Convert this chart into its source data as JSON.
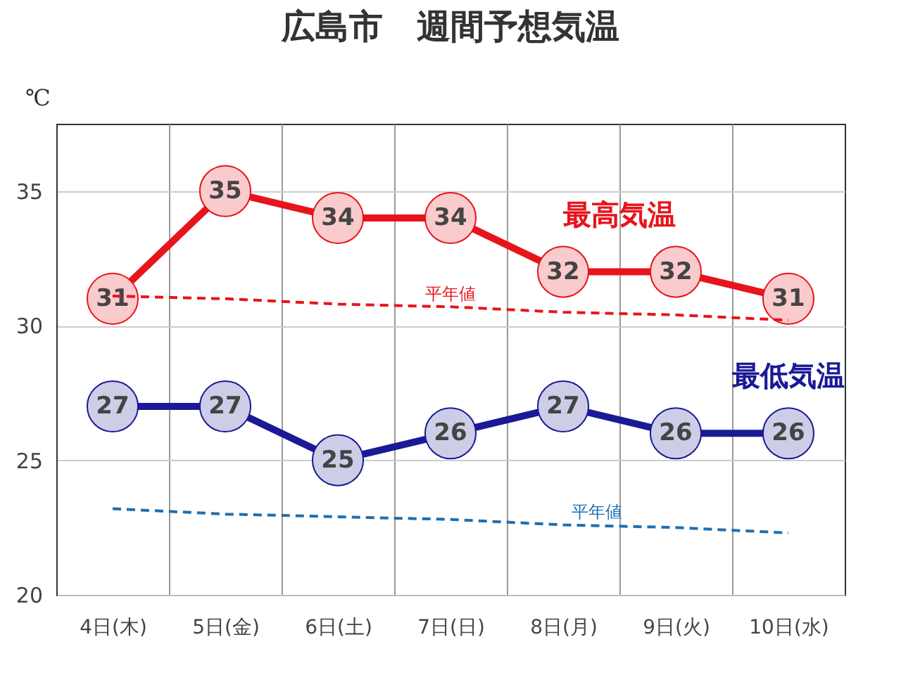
{
  "chart_data": {
    "type": "line",
    "title": "広島市　週間予想気温",
    "ylabel": "℃",
    "categories": [
      "4日(木)",
      "5日(金)",
      "6日(土)",
      "7日(日)",
      "8日(月)",
      "9日(火)",
      "10日(水)"
    ],
    "series": [
      {
        "name": "最高気温",
        "color": "#e8141c",
        "marker": "circle",
        "values": [
          31,
          35,
          34,
          34,
          32,
          32,
          31
        ],
        "value_labels": [
          "31",
          "35",
          "34",
          "34",
          "32",
          "32",
          "31"
        ]
      },
      {
        "name": "最低気温",
        "color": "#1a1a96",
        "marker": "circle",
        "values": [
          27,
          27,
          25,
          26,
          27,
          26,
          26
        ],
        "value_labels": [
          "27",
          "27",
          "25",
          "26",
          "27",
          "26",
          "26"
        ]
      },
      {
        "name": "平年値",
        "color": "#e8141c",
        "marker": "none",
        "line_style": "dashed",
        "values": [
          31.1,
          31.0,
          30.8,
          30.7,
          30.5,
          30.4,
          30.2
        ]
      },
      {
        "name": "平年値",
        "color": "#1f6eb0",
        "marker": "none",
        "line_style": "dashed",
        "values": [
          23.2,
          23.0,
          22.9,
          22.8,
          22.6,
          22.5,
          22.3
        ]
      }
    ],
    "ylim": [
      20,
      37.5
    ],
    "yticks": [
      20,
      25,
      30,
      35
    ],
    "grid": true
  }
}
